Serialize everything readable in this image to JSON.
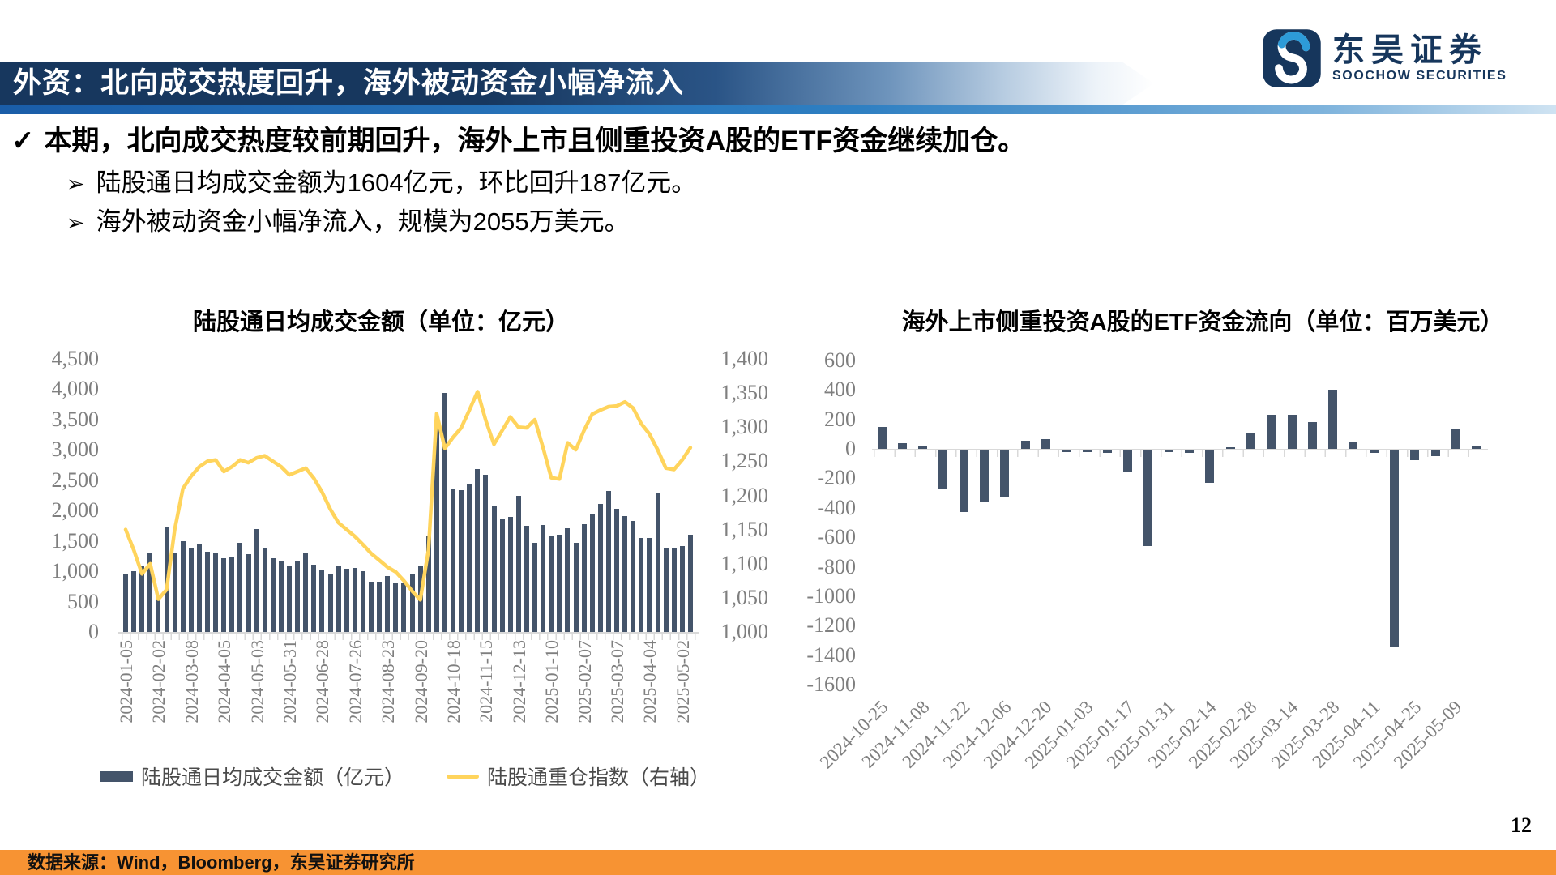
{
  "header": {
    "title": "外资：北向成交热度回升，海外被动资金小幅净流入"
  },
  "logo": {
    "name_cn": "东吴证券",
    "name_en": "SOOCHOW SECURITIES"
  },
  "bullets": {
    "check": "✓",
    "main": "本期，北向成交热度较前期回升，海外上市且侧重投资A股的ETF资金继续加仓。",
    "arrow": "➢",
    "sub1": "陆股通日均成交金额为1604亿元，环比回升187亿元。",
    "sub2": "海外被动资金小幅净流入，规模为2055万美元。"
  },
  "footer": {
    "source": "数据来源：Wind，Bloomberg，东吴证券研究所",
    "page_number": "12"
  },
  "colors": {
    "header_navy": "#17375E",
    "underline_blue": "#2E7FC2",
    "bar_navy": "#44546A",
    "line_yellow": "#FFD45C",
    "footer_orange": "#F79333",
    "axis_gray": "#7F7F7F",
    "logo_navy": "#16365C",
    "logo_blue": "#2D9BD8"
  },
  "chart_data": [
    {
      "type": "bar+line",
      "title": "陆股通日均成交金额（单位：亿元）",
      "x_tick_labels": [
        "2024-01-05",
        "2024-02-02",
        "2024-03-08",
        "2024-04-05",
        "2024-05-03",
        "2024-05-31",
        "2024-06-28",
        "2024-07-26",
        "2024-08-23",
        "2024-09-20",
        "2024-10-18",
        "2024-11-15",
        "2024-12-13",
        "2025-01-10",
        "2025-02-07",
        "2025-03-07",
        "2025-04-04",
        "2025-05-02"
      ],
      "x_label_every": 4,
      "left_axis": {
        "min": 0,
        "max": 4500,
        "tick_step": 500,
        "ticks_top_to_bottom": [
          "4,500",
          "4,000",
          "3,500",
          "3,000",
          "2,500",
          "2,000",
          "1,500",
          "1,000",
          "500",
          "0"
        ]
      },
      "right_axis": {
        "min": 1000,
        "max": 1400,
        "tick_step": 50,
        "ticks_top_to_bottom": [
          "1,400",
          "1,350",
          "1,300",
          "1,250",
          "1,200",
          "1,150",
          "1,100",
          "1,050",
          "1,000"
        ]
      },
      "series": [
        {
          "name": "陆股通日均成交金额（亿元）",
          "type": "bar",
          "axis": "left",
          "color": "#44546A",
          "values": [
            950,
            1000,
            1080,
            1310,
            590,
            1730,
            1310,
            1500,
            1390,
            1460,
            1320,
            1300,
            1210,
            1225,
            1470,
            1280,
            1700,
            1390,
            1220,
            1160,
            1100,
            1180,
            1315,
            1110,
            1020,
            965,
            1080,
            1040,
            1050,
            1000,
            830,
            830,
            920,
            815,
            815,
            950,
            1100,
            1590,
            3400,
            3940,
            2350,
            2340,
            2430,
            2680,
            2590,
            2085,
            1865,
            1895,
            2240,
            1750,
            1470,
            1760,
            1590,
            1600,
            1715,
            1475,
            1780,
            1955,
            2115,
            2320,
            2025,
            1915,
            1825,
            1555,
            1555,
            2290,
            1380,
            1380,
            1417,
            1604
          ]
        },
        {
          "name": "陆股通重仓指数（右轴）",
          "type": "line",
          "axis": "right",
          "color": "#FFD45C",
          "values": [
            1150,
            1120,
            1085,
            1100,
            1048,
            1062,
            1150,
            1210,
            1228,
            1242,
            1250,
            1252,
            1235,
            1242,
            1252,
            1248,
            1255,
            1258,
            1250,
            1242,
            1230,
            1235,
            1240,
            1225,
            1205,
            1180,
            1160,
            1150,
            1140,
            1128,
            1115,
            1105,
            1095,
            1088,
            1075,
            1060,
            1047,
            1120,
            1320,
            1269,
            1285,
            1299,
            1325,
            1352,
            1310,
            1275,
            1295,
            1315,
            1300,
            1299,
            1311,
            1270,
            1226,
            1224,
            1277,
            1267,
            1295,
            1319,
            1325,
            1330,
            1331,
            1337,
            1328,
            1305,
            1290,
            1267,
            1240,
            1238,
            1252,
            1270
          ]
        }
      ]
    },
    {
      "type": "bar",
      "title": "海外上市侧重投资A股的ETF资金流向（单位：百万美元）",
      "x_tick_labels": [
        "2024-10-25",
        "2024-11-08",
        "2024-11-22",
        "2024-12-06",
        "2024-12-20",
        "2025-01-03",
        "2025-01-17",
        "2025-01-31",
        "2025-02-14",
        "2025-02-28",
        "2025-03-14",
        "2025-03-28",
        "2025-04-11",
        "2025-04-25",
        "2025-05-09"
      ],
      "x_label_every": 2,
      "y_axis": {
        "min": -1600,
        "max": 600,
        "tick_step": 200,
        "ticks_top_to_bottom": [
          "600",
          "400",
          "200",
          "0",
          "-200",
          "-400",
          "-600",
          "-800",
          "-1000",
          "-1200",
          "-1400",
          "-1600"
        ]
      },
      "series": [
        {
          "name": "海外上市侧重投资A股的ETF资金流向（百万美元）",
          "type": "bar",
          "color": "#44546A",
          "values": [
            150,
            40,
            20,
            -260,
            -420,
            -350,
            -320,
            55,
            65,
            -8,
            -8,
            -15,
            -145,
            -650,
            -5,
            -15,
            -220,
            5,
            105,
            230,
            230,
            180,
            400,
            45,
            -15,
            -1330,
            -65,
            -40,
            135,
            21
          ]
        }
      ]
    }
  ]
}
